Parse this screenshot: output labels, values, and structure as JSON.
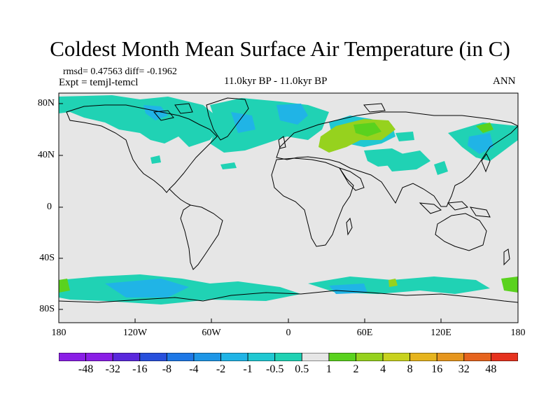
{
  "title": "Coldest Month Mean Surface Air Temperature (in C)",
  "stats": {
    "rmsd_line": "rmsd= 0.47563 diff= -0.1962",
    "expt_line": "Expt = temjl-temcl",
    "period": "11.0kyr BP - 11.0kyr BP",
    "season": "ANN"
  },
  "map": {
    "lat_labels": [
      "80N",
      "40N",
      "0",
      "40S",
      "80S"
    ],
    "lon_labels": [
      "180",
      "120W",
      "60W",
      "0",
      "60E",
      "120E",
      "180"
    ],
    "background_color": "#e6e6e6"
  },
  "colorbar": {
    "labels": [
      "-48",
      "-32",
      "-16",
      "-8",
      "-4",
      "-2",
      "-1",
      "-0.5",
      "0.5",
      "1",
      "2",
      "4",
      "8",
      "16",
      "32",
      "48"
    ],
    "colors": [
      "#8a1ee6",
      "#5a28dc",
      "#2850dc",
      "#1e78e6",
      "#1e96e6",
      "#20b4e6",
      "#20c8d2",
      "#20d2b4",
      "#e6e6e6",
      "#5ad21e",
      "#96d21e",
      "#c8d21e",
      "#e6b41e",
      "#e6961e",
      "#e6641e",
      "#e6321e"
    ]
  }
}
